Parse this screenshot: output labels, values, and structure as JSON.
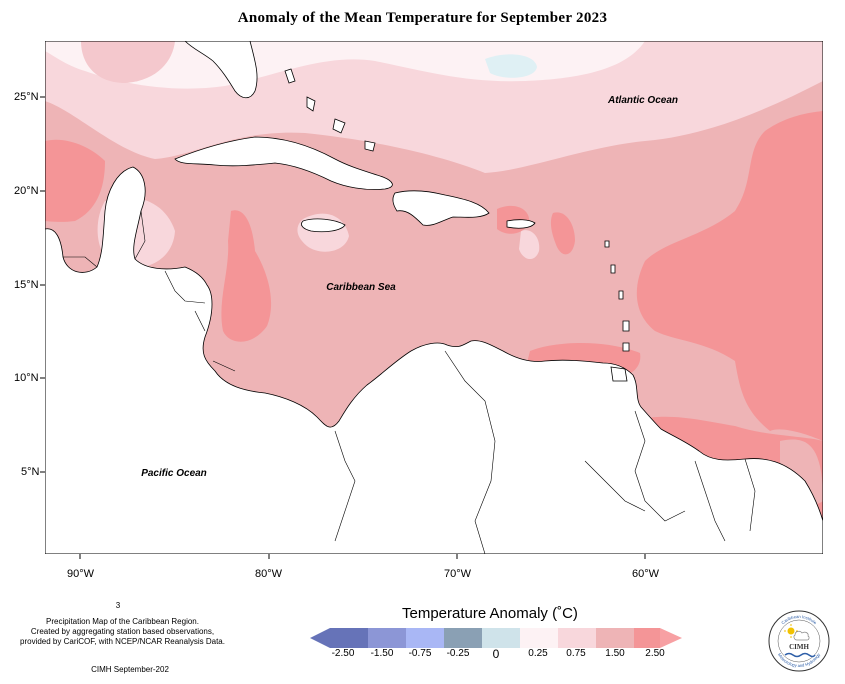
{
  "map": {
    "title": "Anomaly of the Mean Temperature for September 2023",
    "region_labels": {
      "atlantic": "Atlantic Ocean",
      "caribbean": "Caribbean Sea",
      "pacific": "Pacific Ocean"
    },
    "lat_labels": [
      "25°N",
      "20°N",
      "15°N",
      "10°N",
      "5°N"
    ],
    "lon_labels": [
      "90°W",
      "80°W",
      "70°W",
      "60°W"
    ],
    "colors": {
      "anom_0_025": "#fdf2f4",
      "anom_025_075": "#f8d7dc",
      "anom_075_150": "#eeb4b6",
      "anom_150_250": "#f49597",
      "anom_neg": "#dff0f4",
      "land": "#ffffff",
      "coast": "#000000"
    }
  },
  "legend": {
    "title": "Temperature Anomaly (˚C)",
    "ticks": [
      "-2.50",
      "-1.50",
      "-0.75",
      "-0.25",
      "0",
      "0.25",
      "0.75",
      "1.50",
      "2.50"
    ],
    "colors": [
      "#6673b8",
      "#8c96d6",
      "#a9b7f5",
      "#8aa0b4",
      "#cfe3ea",
      "#fdf2f4",
      "#f8d7dc",
      "#eeb4b6",
      "#f49597",
      "#f7a0a3"
    ]
  },
  "notes": {
    "page_mark": "3",
    "caption_line1": "Precipitation Map of the Caribbean Region.",
    "caption_line2": "Created by aggregating station based observations,",
    "caption_line3": "provided by CariCOF, with NCEP/NCAR Reanalysis Data.",
    "credit": "CIMH September-202"
  },
  "logo": {
    "top_text": "Caribbean Institute",
    "center_text": "CIMH",
    "bottom_text": "Meteorology and Hydrology"
  }
}
